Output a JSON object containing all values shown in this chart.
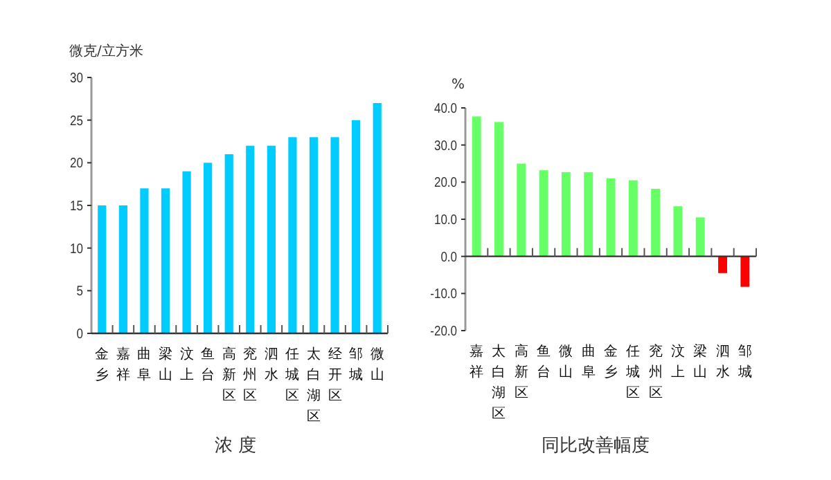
{
  "chart_data": [
    {
      "type": "bar",
      "ylabel": "微克/立方米",
      "xlabel": "浓 度",
      "categories": [
        "金乡",
        "嘉祥",
        "曲阜",
        "梁山",
        "汶上",
        "鱼台",
        "高新区",
        "兖州区",
        "泗水",
        "任城区",
        "太白湖区",
        "经开区",
        "邹城",
        "微山"
      ],
      "values": [
        15,
        15,
        17,
        17,
        19,
        20,
        21,
        22,
        22,
        23,
        23,
        23,
        25,
        27
      ],
      "color": "#00ccff",
      "ylim": [
        0,
        30
      ],
      "yticks": [
        0,
        5,
        10,
        15,
        20,
        25,
        30
      ]
    },
    {
      "type": "bar",
      "ylabel": "%",
      "xlabel": "同比改善幅度",
      "categories": [
        "嘉祥",
        "太白湖区",
        "高新区",
        "鱼台",
        "微山",
        "曲阜",
        "金乡",
        "任城区",
        "兖州区",
        "汶上",
        "梁山",
        "泗水",
        "邹城"
      ],
      "values": [
        37.7,
        36.2,
        25.0,
        23.2,
        22.7,
        22.7,
        21.0,
        20.5,
        18.2,
        13.5,
        10.5,
        -4.5,
        -8.2
      ],
      "colors": [
        "#66ff66",
        "#66ff66",
        "#66ff66",
        "#66ff66",
        "#66ff66",
        "#66ff66",
        "#66ff66",
        "#66ff66",
        "#66ff66",
        "#66ff66",
        "#66ff66",
        "#ff0000",
        "#ff0000"
      ],
      "ylim": [
        -20,
        40
      ],
      "yticks": [
        {
          "value": -20,
          "label": "-20.0"
        },
        {
          "value": -10,
          "label": "-10.0"
        },
        {
          "value": 0,
          "label": "0.0"
        },
        {
          "value": 10,
          "label": "10.0"
        },
        {
          "value": 20,
          "label": "20.0"
        },
        {
          "value": 30,
          "label": "30.0"
        },
        {
          "value": 40,
          "label": "40.0"
        }
      ]
    }
  ]
}
